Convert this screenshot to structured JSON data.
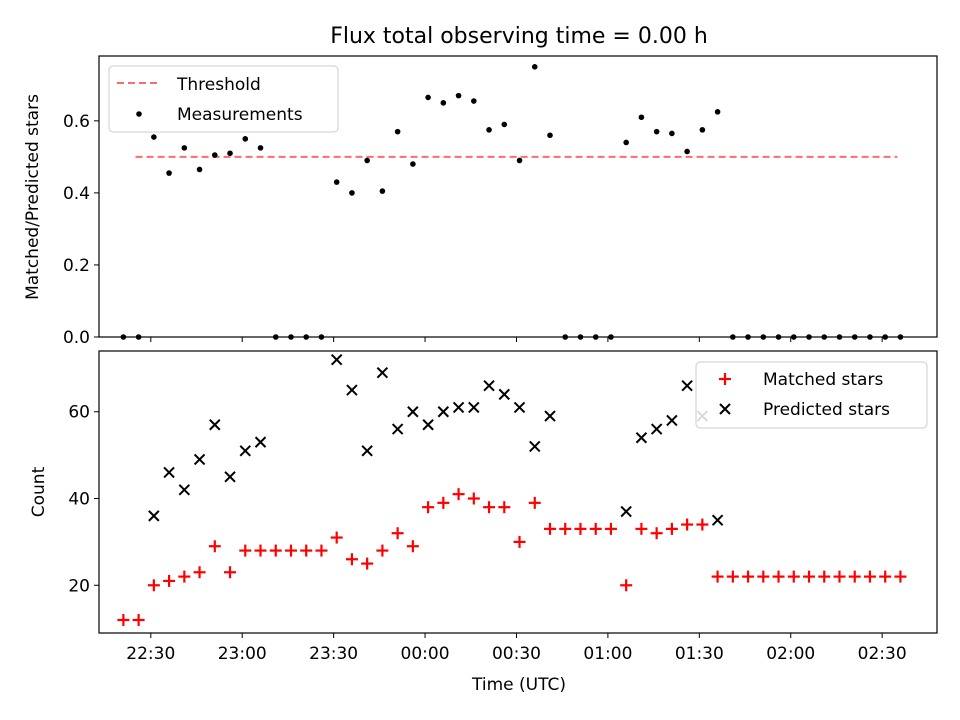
{
  "title": "Flux total observing time = 0.00 h",
  "colors": {
    "threshold": "#ff6b6b",
    "measurement": "#000000",
    "matched": "#ff0000",
    "predicted": "#000000"
  },
  "chart_data": [
    {
      "type": "scatter",
      "ylabel": "Matched/Predicted stars",
      "ylim": [
        0,
        0.78
      ],
      "yticks": [
        "0.0",
        "0.2",
        "0.4",
        "0.6"
      ],
      "yticks_values": [
        0,
        0.2,
        0.4,
        0.6
      ],
      "threshold": {
        "name": "Threshold",
        "value": 0.5,
        "x_range": [
          "22:25",
          "02:35"
        ]
      },
      "legend": {
        "position": "top-left",
        "threshold_label": "Threshold",
        "measurements_label": "Measurements"
      },
      "series": [
        {
          "name": "Measurements",
          "x": [
            "22:21",
            "22:26",
            "22:31",
            "22:36",
            "22:41",
            "22:46",
            "22:51",
            "22:56",
            "23:01",
            "23:06",
            "23:11",
            "23:16",
            "23:21",
            "23:26",
            "23:31",
            "23:36",
            "23:41",
            "23:46",
            "23:51",
            "23:56",
            "00:01",
            "00:06",
            "00:11",
            "00:16",
            "00:21",
            "00:26",
            "00:31",
            "00:36",
            "00:41",
            "00:46",
            "00:51",
            "00:56",
            "01:01",
            "01:06",
            "01:11",
            "01:16",
            "01:21",
            "01:26",
            "01:31",
            "01:36",
            "01:41",
            "01:46",
            "01:51",
            "01:56",
            "02:01",
            "02:06",
            "02:11",
            "02:16",
            "02:21",
            "02:26",
            "02:31",
            "02:36"
          ],
          "y": [
            0,
            0,
            0.555,
            0.455,
            0.525,
            0.465,
            0.505,
            0.51,
            0.55,
            0.525,
            0,
            0,
            0,
            0,
            0.43,
            0.4,
            0.49,
            0.405,
            0.57,
            0.48,
            0.665,
            0.65,
            0.67,
            0.655,
            0.575,
            0.59,
            0.49,
            0.75,
            0.56,
            0,
            0,
            0,
            0,
            0.54,
            0.61,
            0.57,
            0.565,
            0.515,
            0.575,
            0.625,
            0,
            0,
            0,
            0,
            0,
            0,
            0,
            0,
            0,
            0,
            0,
            0
          ]
        }
      ]
    },
    {
      "type": "scatter",
      "xlabel": "Time (UTC)",
      "ylabel": "Count",
      "ylim": [
        9,
        74
      ],
      "yticks": [
        "20",
        "40",
        "60"
      ],
      "yticks_values": [
        20,
        40,
        60
      ],
      "xticks": [
        "22:30",
        "23:00",
        "23:30",
        "00:00",
        "00:30",
        "01:00",
        "01:30",
        "02:00",
        "02:30"
      ],
      "xlim": [
        "22:13",
        "02:48"
      ],
      "legend": {
        "position": "top-right"
      },
      "series": [
        {
          "name": "Matched stars",
          "x": [
            "22:21",
            "22:26",
            "22:31",
            "22:36",
            "22:41",
            "22:46",
            "22:51",
            "22:56",
            "23:01",
            "23:06",
            "23:11",
            "23:16",
            "23:21",
            "23:26",
            "23:31",
            "23:36",
            "23:41",
            "23:46",
            "23:51",
            "23:56",
            "00:01",
            "00:06",
            "00:11",
            "00:16",
            "00:21",
            "00:26",
            "00:31",
            "00:36",
            "00:41",
            "00:46",
            "00:51",
            "00:56",
            "01:01",
            "01:06",
            "01:11",
            "01:16",
            "01:21",
            "01:26",
            "01:31",
            "01:36",
            "01:41",
            "01:46",
            "01:51",
            "01:56",
            "02:01",
            "02:06",
            "02:11",
            "02:16",
            "02:21",
            "02:26",
            "02:31",
            "02:36"
          ],
          "y": [
            12,
            12,
            20,
            21,
            22,
            23,
            29,
            23,
            28,
            28,
            28,
            28,
            28,
            28,
            31,
            26,
            25,
            28,
            32,
            29,
            38,
            39,
            41,
            40,
            38,
            38,
            30,
            39,
            33,
            33,
            33,
            33,
            33,
            20,
            33,
            32,
            33,
            34,
            34,
            22,
            22,
            22,
            22,
            22,
            22,
            22,
            22,
            22,
            22,
            22,
            22,
            22
          ]
        },
        {
          "name": "Predicted stars",
          "x": [
            "22:31",
            "22:36",
            "22:41",
            "22:46",
            "22:51",
            "22:56",
            "23:01",
            "23:06",
            "23:31",
            "23:36",
            "23:41",
            "23:46",
            "23:51",
            "23:56",
            "00:01",
            "00:06",
            "00:11",
            "00:16",
            "00:21",
            "00:26",
            "00:31",
            "00:36",
            "00:41",
            "01:06",
            "01:11",
            "01:16",
            "01:21",
            "01:26",
            "01:31",
            "01:36"
          ],
          "y": [
            36,
            46,
            42,
            49,
            57,
            45,
            51,
            53,
            72,
            65,
            51,
            69,
            56,
            60,
            57,
            60,
            61,
            61,
            66,
            64,
            61,
            52,
            59,
            37,
            54,
            56,
            58,
            66,
            59,
            35
          ]
        }
      ]
    }
  ]
}
